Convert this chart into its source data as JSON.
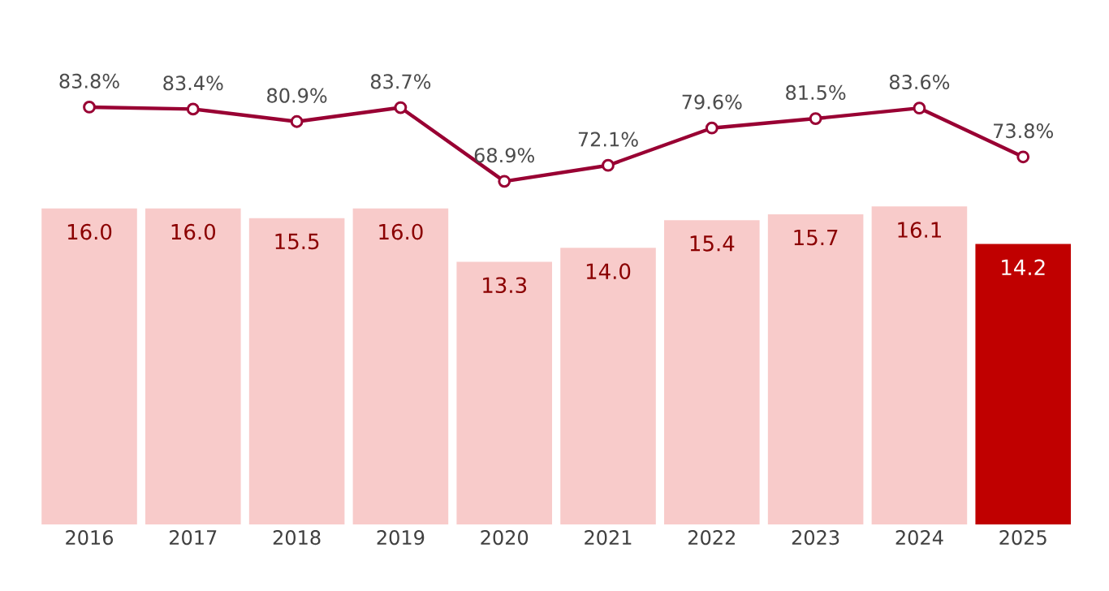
{
  "chart_data": [
    {
      "type": "bar",
      "categories": [
        "2016",
        "2017",
        "2018",
        "2019",
        "2020",
        "2021",
        "2022",
        "2023",
        "2024",
        "2025"
      ],
      "colors": [
        "#f8cbca",
        "#f8cbca",
        "#f8cbca",
        "#f8cbca",
        "#f8cbca",
        "#f8cbca",
        "#f8cbca",
        "#f8cbca",
        "#f8cbca",
        "#c00000"
      ],
      "values": [
        16.0,
        16.0,
        15.5,
        16.0,
        13.3,
        14.0,
        15.4,
        15.7,
        16.1,
        14.2
      ],
      "value_labels": [
        "16.0",
        "16.0",
        "15.5",
        "16.0",
        "13.3",
        "14.0",
        "15.4",
        "15.7",
        "16.1",
        "14.2"
      ],
      "tick_labels": "x"
    },
    {
      "type": "line",
      "categories": [
        "2016",
        "2017",
        "2018",
        "2019",
        "2020",
        "2021",
        "2022",
        "2023",
        "2024",
        "2025"
      ],
      "color": "#990033",
      "values": [
        83.8,
        83.4,
        80.9,
        83.7,
        68.9,
        72.1,
        79.6,
        81.5,
        83.6,
        73.8
      ],
      "value_labels": [
        "83.8%",
        "83.4%",
        "80.9%",
        "83.7%",
        "68.9%",
        "72.1%",
        "79.6%",
        "81.5%",
        "83.6%",
        "73.8%"
      ],
      "tick_labels": false,
      "marker": "circle",
      "line_style": "solid"
    }
  ]
}
